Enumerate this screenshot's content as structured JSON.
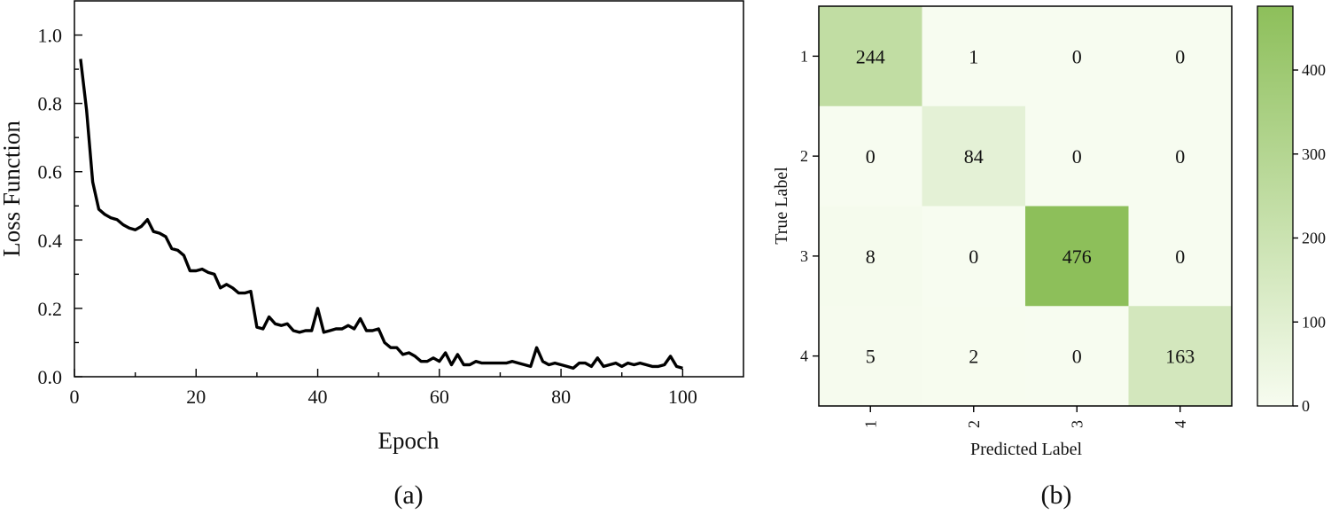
{
  "panels": {
    "a_label": "(a)",
    "b_label": "(b)"
  },
  "chart_data": [
    {
      "type": "line",
      "title": "",
      "xlabel": "Epoch",
      "ylabel": "Loss Function",
      "xlim": [
        0,
        110
      ],
      "ylim": [
        0,
        1.1
      ],
      "xticks": [
        0,
        20,
        40,
        60,
        80,
        100
      ],
      "yticks": [
        0.0,
        0.2,
        0.4,
        0.6,
        0.8,
        1.0
      ],
      "xtick_labels": [
        "0",
        "20",
        "40",
        "60",
        "80",
        "100"
      ],
      "ytick_labels": [
        "0.0",
        "0.2",
        "0.4",
        "0.6",
        "0.8",
        "1.0"
      ],
      "grid": false,
      "line_color": "#000000",
      "series": [
        {
          "x": [
            1,
            2,
            3,
            4,
            5,
            6,
            7,
            8,
            9,
            10,
            11,
            12,
            13,
            14,
            15,
            16,
            17,
            18,
            19,
            20,
            21,
            22,
            23,
            24,
            25,
            26,
            27,
            28,
            29,
            30,
            31,
            32,
            33,
            34,
            35,
            36,
            37,
            38,
            39,
            40,
            41,
            42,
            43,
            44,
            45,
            46,
            47,
            48,
            49,
            50,
            51,
            52,
            53,
            54,
            55,
            56,
            57,
            58,
            59,
            60,
            61,
            62,
            63,
            64,
            65,
            66,
            67,
            68,
            69,
            70,
            71,
            72,
            73,
            74,
            75,
            76,
            77,
            78,
            79,
            80,
            81,
            82,
            83,
            84,
            85,
            86,
            87,
            88,
            89,
            90,
            91,
            92,
            93,
            94,
            95,
            96,
            97,
            98,
            99,
            100
          ],
          "values": [
            0.93,
            0.78,
            0.57,
            0.49,
            0.475,
            0.465,
            0.46,
            0.445,
            0.435,
            0.43,
            0.44,
            0.46,
            0.425,
            0.42,
            0.41,
            0.375,
            0.37,
            0.355,
            0.31,
            0.31,
            0.315,
            0.305,
            0.3,
            0.26,
            0.27,
            0.26,
            0.245,
            0.245,
            0.25,
            0.145,
            0.14,
            0.175,
            0.155,
            0.15,
            0.155,
            0.135,
            0.13,
            0.135,
            0.135,
            0.2,
            0.13,
            0.135,
            0.14,
            0.14,
            0.15,
            0.14,
            0.17,
            0.135,
            0.135,
            0.14,
            0.1,
            0.085,
            0.085,
            0.065,
            0.07,
            0.06,
            0.045,
            0.045,
            0.055,
            0.045,
            0.07,
            0.035,
            0.065,
            0.035,
            0.035,
            0.045,
            0.04,
            0.04,
            0.04,
            0.04,
            0.04,
            0.045,
            0.04,
            0.035,
            0.03,
            0.085,
            0.045,
            0.035,
            0.04,
            0.035,
            0.03,
            0.025,
            0.04,
            0.04,
            0.03,
            0.055,
            0.03,
            0.035,
            0.04,
            0.03,
            0.04,
            0.035,
            0.04,
            0.035,
            0.03,
            0.03,
            0.035,
            0.06,
            0.03,
            0.025
          ]
        }
      ]
    },
    {
      "type": "heatmap",
      "title": "",
      "xlabel": "Predicted Label",
      "ylabel": "True Label",
      "x_categories": [
        "1",
        "2",
        "3",
        "4"
      ],
      "y_categories": [
        "1",
        "2",
        "3",
        "4"
      ],
      "values": [
        [
          244,
          1,
          0,
          0
        ],
        [
          0,
          84,
          0,
          0
        ],
        [
          8,
          0,
          476,
          0
        ],
        [
          5,
          2,
          0,
          163
        ]
      ],
      "colorbar": {
        "min": 0,
        "max": 476,
        "ticks": [
          0,
          100,
          200,
          300,
          400
        ],
        "tick_labels": [
          "0",
          "100",
          "200",
          "300",
          "400"
        ],
        "color_low": "#f7fcf0",
        "color_high": "#8dbf5a"
      }
    }
  ]
}
